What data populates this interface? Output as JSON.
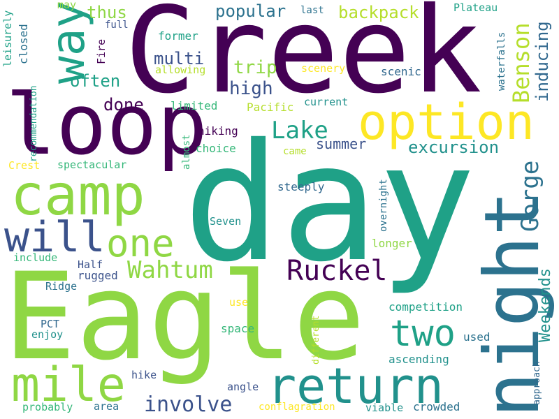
{
  "palette": {
    "dark_purple": "#440154",
    "indigo": "#3b528b",
    "steel_blue": "#31688e",
    "teal_blue": "#2c728e",
    "teal": "#21918c",
    "green_teal": "#1fa187",
    "green": "#35b779",
    "lime": "#8fd744",
    "yellow_green": "#b5de2b",
    "yellow": "#fde725"
  },
  "words": [
    "day",
    "Creek",
    "Eagle",
    "night",
    "loop",
    "option",
    "return",
    "camp",
    "way",
    "mile",
    "will",
    "one",
    "two",
    "Ruckel",
    "Wahtum",
    "Lake",
    "Gorge",
    "Benson",
    "involve",
    "backpack",
    "excursion",
    "popular",
    "high",
    "inducing",
    "trip",
    "multi",
    "often",
    "thus",
    "Weekends",
    "done",
    "summer",
    "hiking",
    "closed",
    "leisurely",
    "recommendation",
    "Fire",
    "allowing",
    "scenery",
    "scenic",
    "waterfalls",
    "Plateau",
    "may",
    "last",
    "full",
    "former",
    "limited",
    "Pacific",
    "current",
    "choice",
    "Crest",
    "spectacular",
    "almost",
    "came",
    "steeply",
    "overnight",
    "Seven",
    "longer",
    "include",
    "Half",
    "rugged",
    "Ridge",
    "use",
    "competition",
    "PCT",
    "enjoy",
    "space",
    "different",
    "used",
    "ascending",
    "hike",
    "approach",
    "angle",
    "probably",
    "area",
    "conflagration",
    "viable",
    "crowded"
  ]
}
